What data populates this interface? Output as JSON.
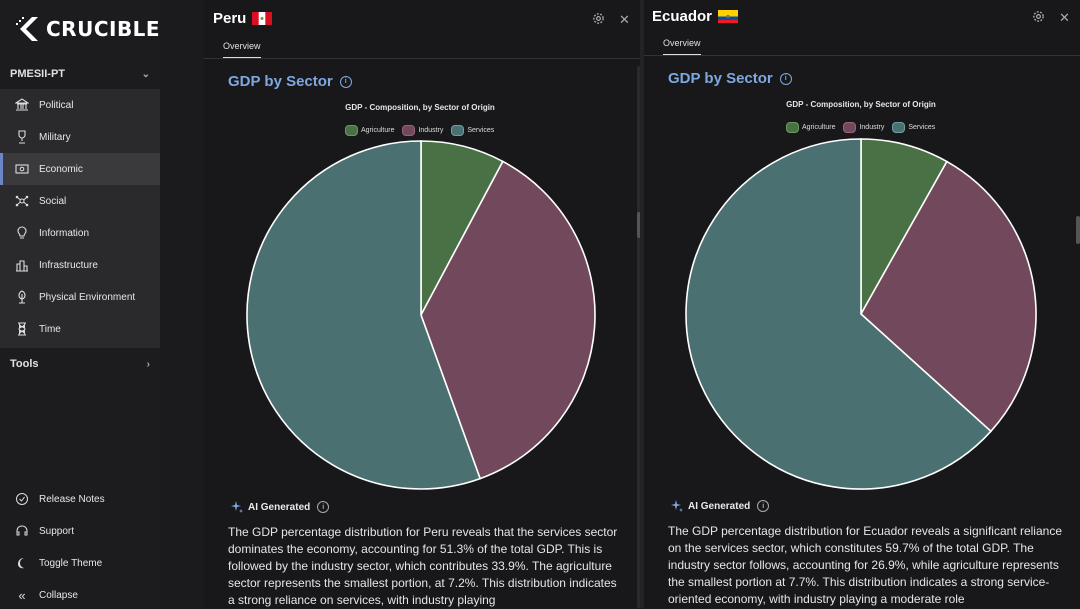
{
  "app": {
    "logo_text": "CRUCIBLE"
  },
  "sidebar": {
    "section_label": "PMESII-PT",
    "items": [
      {
        "label": "Political",
        "icon": "political-icon"
      },
      {
        "label": "Military",
        "icon": "military-icon"
      },
      {
        "label": "Economic",
        "icon": "economic-icon",
        "active": true
      },
      {
        "label": "Social",
        "icon": "social-icon"
      },
      {
        "label": "Information",
        "icon": "information-icon"
      },
      {
        "label": "Infrastructure",
        "icon": "infrastructure-icon"
      },
      {
        "label": "Physical Environment",
        "icon": "physical-environment-icon"
      },
      {
        "label": "Time",
        "icon": "time-icon"
      }
    ],
    "tools_label": "Tools",
    "bottom": [
      {
        "label": "Release Notes",
        "icon": "release-notes-icon"
      },
      {
        "label": "Support",
        "icon": "support-icon"
      },
      {
        "label": "Toggle Theme",
        "icon": "moon-icon"
      },
      {
        "label": "Collapse",
        "icon": "collapse-icon"
      }
    ]
  },
  "colors": {
    "agriculture": "#4a7145",
    "industry": "#72485c",
    "services": "#4a7072",
    "accent": "#7fa7e0"
  },
  "panels": {
    "peru": {
      "country": "Peru",
      "tab": "Overview",
      "section_title": "GDP by Sector",
      "chart_title": "GDP - Composition, by Sector of Origin",
      "ai_label": "AI Generated",
      "summary": "The GDP percentage distribution for Peru reveals that the services sector dominates the economy, accounting for 51.3% of the total GDP. This is followed by the industry sector, which contributes 33.9%. The agriculture sector represents the smallest portion, at 7.2%. This distribution indicates a strong reliance on services, with industry playing"
    },
    "ecuador": {
      "country": "Ecuador",
      "tab": "Overview",
      "section_title": "GDP by Sector",
      "chart_title": "GDP - Composition, by Sector of Origin",
      "ai_label": "AI Generated",
      "summary": "The GDP percentage distribution for Ecuador reveals a significant reliance on the services sector, which constitutes 59.7% of the total GDP. The industry sector follows, accounting for 26.9%, while agriculture represents the smallest portion at 7.7%. This distribution indicates a strong service-oriented economy, with industry playing a moderate role"
    }
  },
  "chart_data": [
    {
      "type": "pie",
      "title": "GDP - Composition, by Sector of Origin",
      "categories": [
        "Agriculture",
        "Industry",
        "Services"
      ],
      "values": [
        7.2,
        33.9,
        51.3
      ],
      "legend": "top"
    },
    {
      "type": "pie",
      "title": "GDP - Composition, by Sector of Origin",
      "categories": [
        "Agriculture",
        "Industry",
        "Services"
      ],
      "values": [
        7.7,
        26.9,
        59.7
      ],
      "legend": "top"
    }
  ]
}
